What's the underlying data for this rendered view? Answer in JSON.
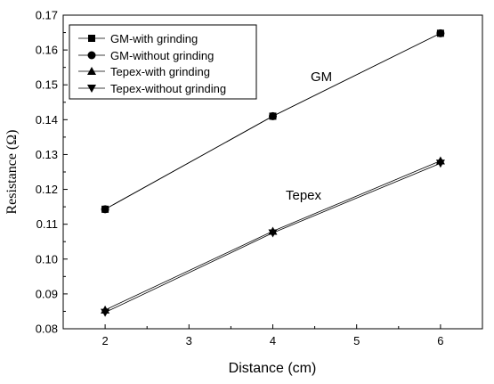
{
  "chart_data": {
    "type": "line",
    "title": "",
    "xlabel": "Distance (cm)",
    "ylabel": "Resistance (Ω)",
    "xlim": [
      1.5,
      6.5
    ],
    "ylim": [
      0.08,
      0.17
    ],
    "x_ticks": [
      "2",
      "3",
      "4",
      "5",
      "6"
    ],
    "y_ticks": [
      "0.08",
      "0.09",
      "0.10",
      "0.11",
      "0.12",
      "0.13",
      "0.14",
      "0.15",
      "0.16",
      "0.17"
    ],
    "grid": false,
    "legend_position": "top-left",
    "x": [
      2,
      4,
      6
    ],
    "series": [
      {
        "name": "GM-with grinding",
        "marker": "square",
        "values": [
          0.1143,
          0.141,
          0.1648
        ]
      },
      {
        "name": "GM-without grinding",
        "marker": "circle",
        "values": [
          0.1143,
          0.141,
          0.1648
        ]
      },
      {
        "name": "Tepex-with grinding",
        "marker": "triangle-up",
        "values": [
          0.0854,
          0.108,
          0.1282
        ]
      },
      {
        "name": "Tepex-without grinding",
        "marker": "triangle-down",
        "values": [
          0.0847,
          0.1075,
          0.1275
        ]
      }
    ],
    "annotations": [
      "GM",
      "Tepex"
    ]
  }
}
